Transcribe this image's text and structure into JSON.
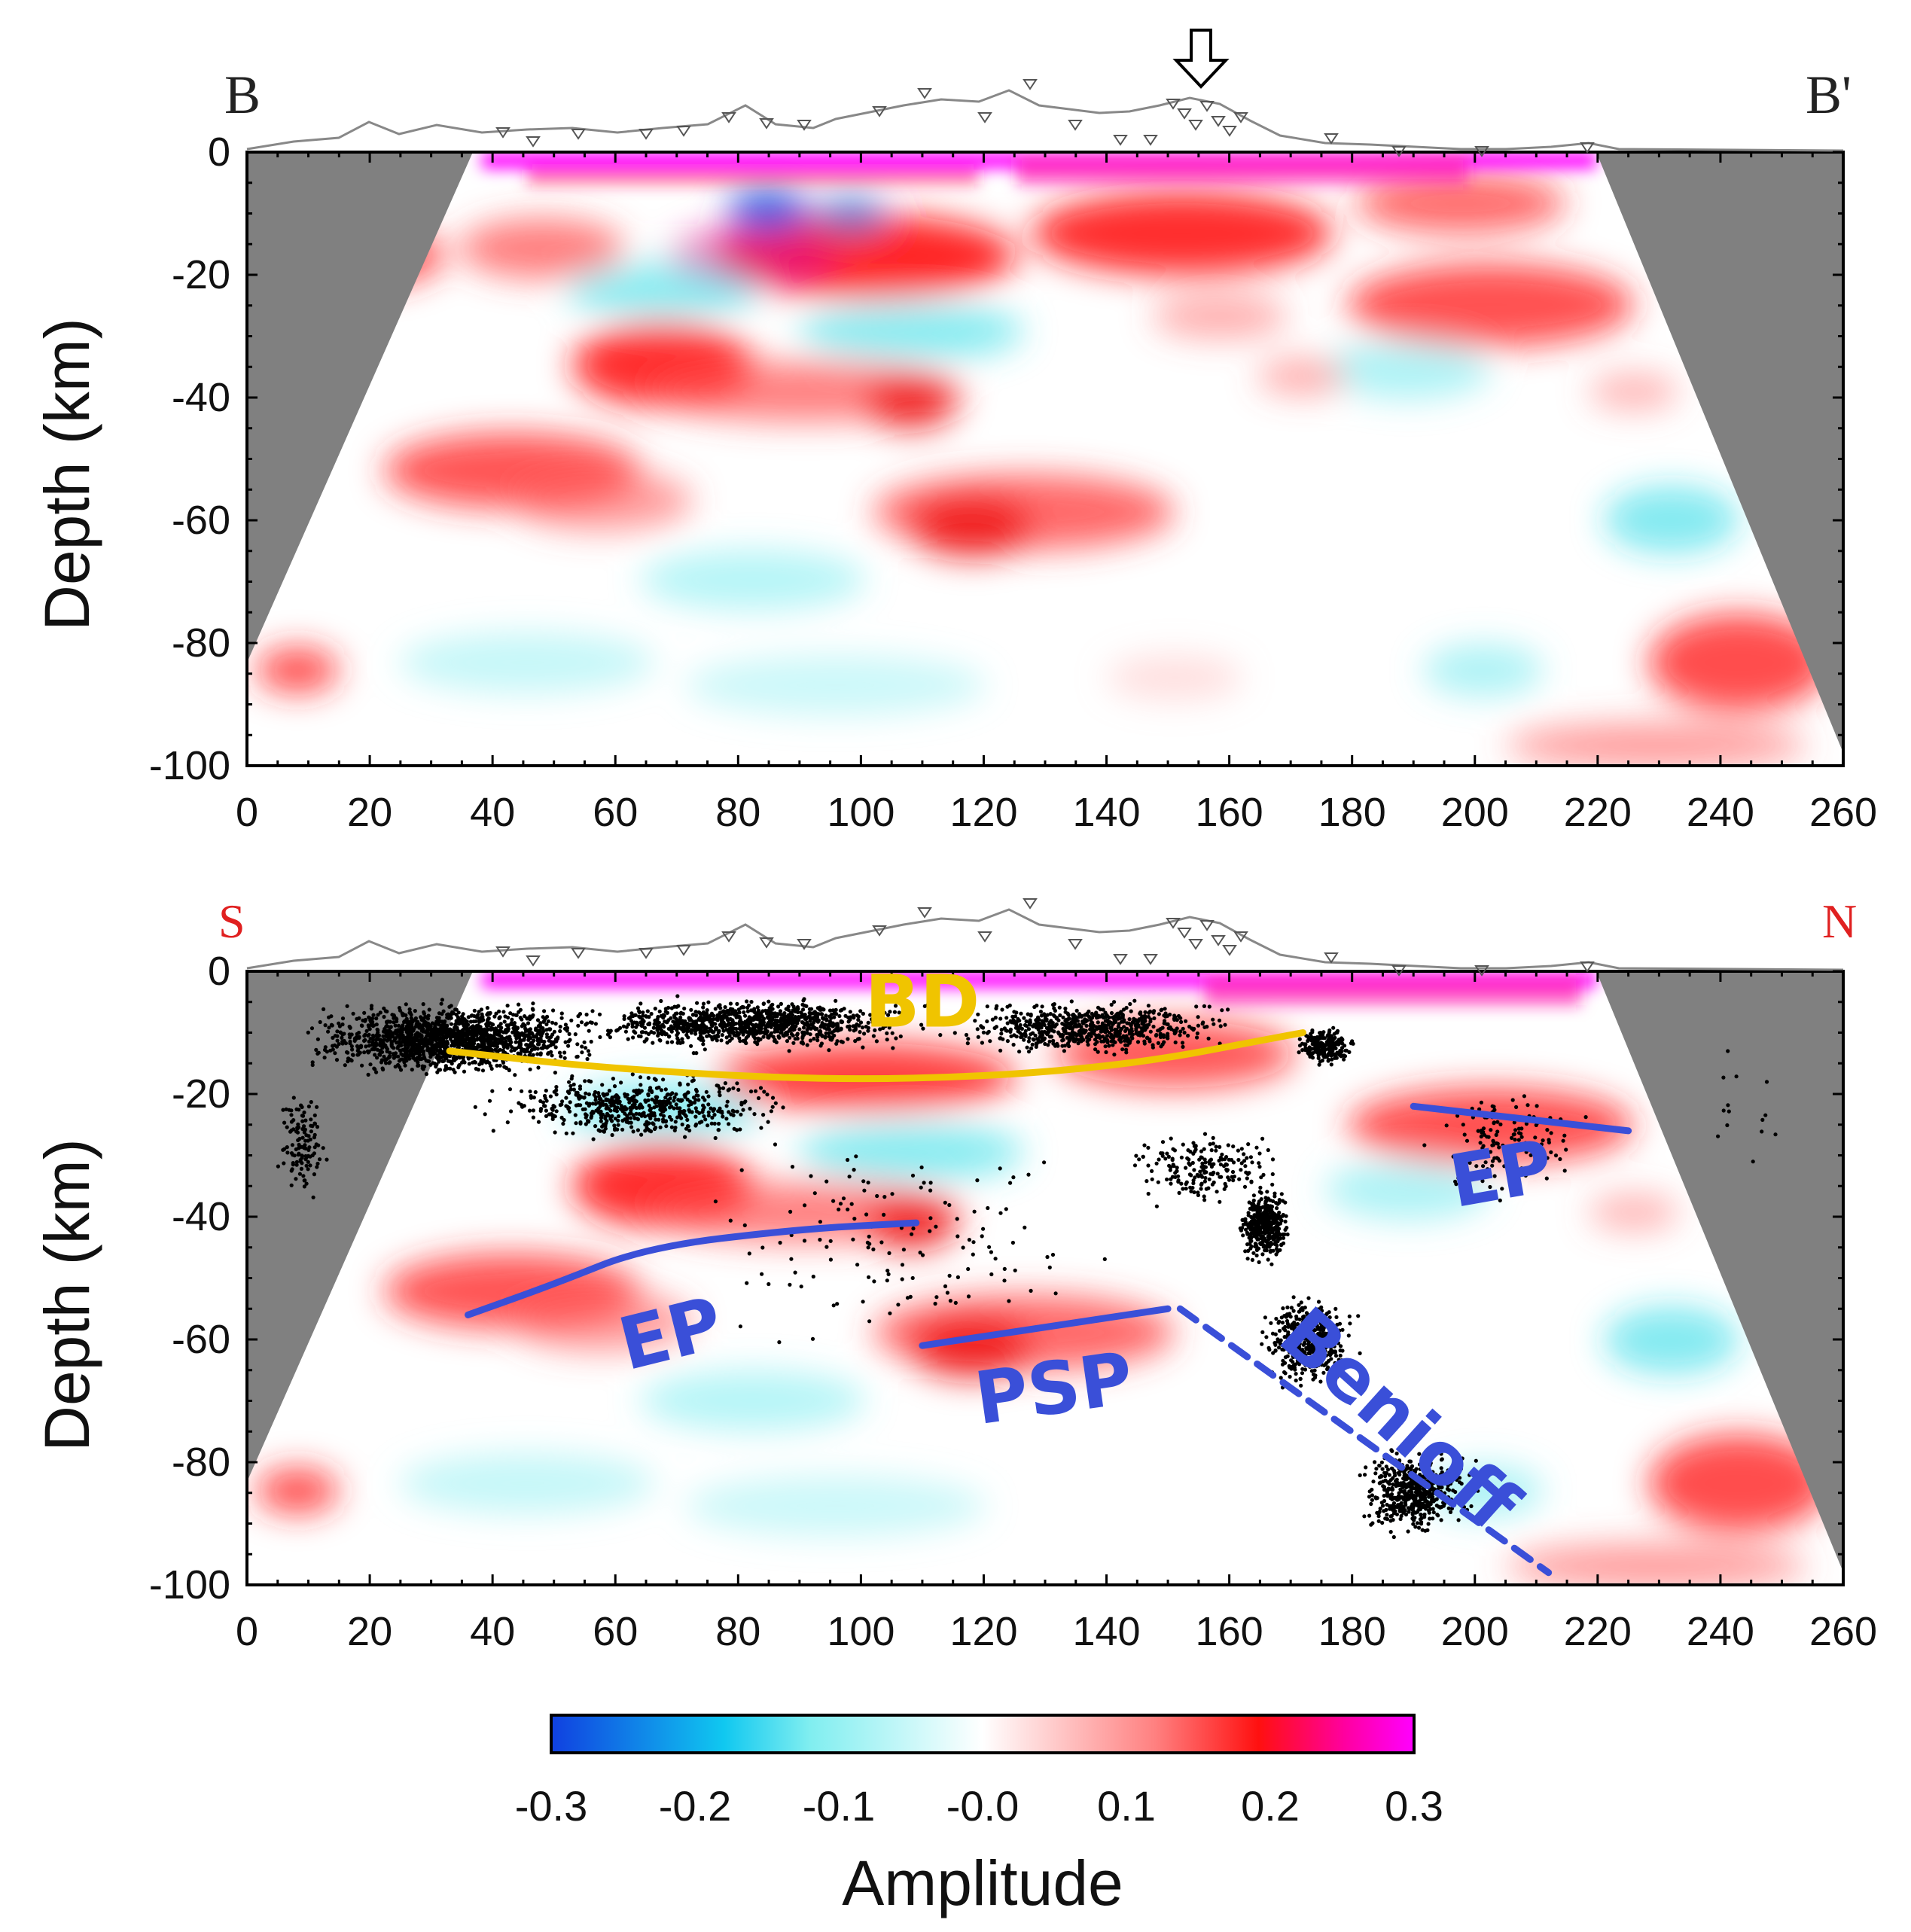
{
  "chart_data": [
    {
      "type": "heatmap",
      "profile_start": "B",
      "profile_end": "B'",
      "xlabel": "",
      "ylabel": "Depth (km)",
      "xlim": [
        0,
        260
      ],
      "ylim": [
        -100,
        0
      ],
      "x_ticks": [
        "0",
        "20",
        "40",
        "60",
        "80",
        "100",
        "120",
        "140",
        "160",
        "180",
        "200",
        "220",
        "240",
        "260"
      ],
      "y_ticks": [
        "0",
        "-20",
        "-40",
        "-60",
        "-80",
        "-100"
      ],
      "volcano_marker_x_km": 157,
      "anomalies": [
        {
          "x": 60,
          "depth": -3,
          "value": 0.3
        },
        {
          "x": 140,
          "depth": -3,
          "value": 0.3
        },
        {
          "x": 200,
          "depth": -3,
          "value": 0.3
        },
        {
          "x": 100,
          "depth": -10,
          "value": -0.3
        },
        {
          "x": 88,
          "depth": -10,
          "value": -0.25
        },
        {
          "x": 45,
          "depth": -17,
          "value": 0.2
        },
        {
          "x": 120,
          "depth": -18,
          "value": 0.25
        },
        {
          "x": 165,
          "depth": -14,
          "value": 0.2
        },
        {
          "x": 210,
          "depth": -25,
          "value": 0.2
        },
        {
          "x": 70,
          "depth": -35,
          "value": 0.2
        },
        {
          "x": 110,
          "depth": -41,
          "value": 0.2
        },
        {
          "x": 50,
          "depth": -52,
          "value": 0.2
        },
        {
          "x": 125,
          "depth": -60,
          "value": 0.2
        },
        {
          "x": 130,
          "depth": -30,
          "value": -0.12
        },
        {
          "x": 90,
          "depth": -24,
          "value": -0.1
        },
        {
          "x": 240,
          "depth": -62,
          "value": -0.12
        },
        {
          "x": 10,
          "depth": -85,
          "value": 0.15
        },
        {
          "x": 250,
          "depth": -85,
          "value": 0.18
        },
        {
          "x": 100,
          "depth": -80,
          "value": -0.08
        },
        {
          "x": 210,
          "depth": -85,
          "value": -0.1
        }
      ]
    },
    {
      "type": "heatmap",
      "profile_start": "S",
      "profile_end": "N",
      "xlabel": "",
      "ylabel": "Depth (km)",
      "xlim": [
        0,
        260
      ],
      "ylim": [
        -100,
        0
      ],
      "x_ticks": [
        "0",
        "20",
        "40",
        "60",
        "80",
        "100",
        "120",
        "140",
        "160",
        "180",
        "200",
        "220",
        "240",
        "260"
      ],
      "y_ticks": [
        "0",
        "-20",
        "-40",
        "-60",
        "-80",
        "-100"
      ],
      "interpretations": [
        {
          "label": "BD",
          "color": "#f0c400",
          "style": "solid",
          "points": [
            [
              33,
              -13
            ],
            [
              60,
              -16
            ],
            [
              100,
              -18
            ],
            [
              140,
              -16
            ],
            [
              172,
              -10
            ]
          ]
        },
        {
          "label": "EP",
          "color": "#3a4fd8",
          "style": "solid",
          "points": [
            [
              36,
              -56
            ],
            [
              50,
              -51
            ],
            [
              65,
              -45
            ],
            [
              90,
              -42
            ],
            [
              109,
              -41
            ]
          ]
        },
        {
          "label": "PSP",
          "color": "#3a4fd8",
          "style": "solid",
          "points": [
            [
              110,
              -61
            ],
            [
              130,
              -58
            ],
            [
              150,
              -55
            ]
          ]
        },
        {
          "label": "EP",
          "color": "#3a4fd8",
          "style": "solid",
          "points": [
            [
              190,
              -22
            ],
            [
              225,
              -26
            ]
          ]
        },
        {
          "label": "Benioff",
          "color": "#3a4fd8",
          "style": "dashed",
          "points": [
            [
              152,
              -55
            ],
            [
              212,
              -98
            ]
          ]
        }
      ],
      "labels": [
        {
          "text": "BD",
          "x": 110,
          "depth": -9,
          "color": "#f0c400"
        },
        {
          "text": "EP",
          "x": 70,
          "depth": -63,
          "color": "#3a4fd8"
        },
        {
          "text": "PSP",
          "x": 132,
          "depth": -72,
          "color": "#3a4fd8"
        },
        {
          "text": "EP",
          "x": 205,
          "depth": -37,
          "color": "#3a4fd8"
        },
        {
          "text": "Benioff",
          "x": 185,
          "depth": -76,
          "color": "#3a4fd8"
        }
      ],
      "seismicity_note": "black dots denote earthquake hypocentres"
    }
  ],
  "colorbar": {
    "title": "Amplitude",
    "range": [
      -0.3,
      0.3
    ],
    "tick_labels": [
      "-0.3",
      "-0.2",
      "-0.1",
      "-0.0",
      "0.1",
      "0.2",
      "0.3"
    ],
    "colors": [
      "#1050e0",
      "#20e0e8",
      "#ffffff",
      "#ff2020",
      "#ff00ff"
    ]
  }
}
